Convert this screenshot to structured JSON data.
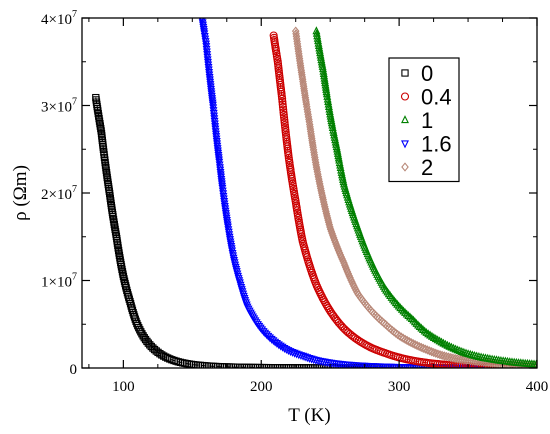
{
  "chart_data": {
    "type": "scatter",
    "xlabel": "T (K)",
    "ylabel": "ρ (Ωm)",
    "xlim": [
      70,
      400
    ],
    "ylim": [
      0,
      40000000
    ],
    "x_ticks": [
      {
        "value": 100,
        "label": "100"
      },
      {
        "value": 200,
        "label": "200"
      },
      {
        "value": 300,
        "label": "300"
      },
      {
        "value": 400,
        "label": "400"
      }
    ],
    "y_ticks": [
      {
        "value": 0,
        "base": "0",
        "exp": ""
      },
      {
        "value": 10000000,
        "base": "1×10",
        "exp": "7"
      },
      {
        "value": 20000000,
        "base": "2×10",
        "exp": "7"
      },
      {
        "value": 30000000,
        "base": "3×10",
        "exp": "7"
      },
      {
        "value": 40000000,
        "base": "4×10",
        "exp": "7"
      }
    ],
    "legend_position": "top-right",
    "series": [
      {
        "name": "0",
        "color": "#000000",
        "marker": "square",
        "x_range": [
          80,
          340
        ],
        "points": [
          [
            80,
            30900000
          ],
          [
            84,
            27000000
          ],
          [
            90,
            20000000
          ],
          [
            95,
            15000000
          ],
          [
            100,
            10500000
          ],
          [
            105,
            7500000
          ],
          [
            110,
            5000000
          ],
          [
            115,
            3500000
          ],
          [
            120,
            2500000
          ],
          [
            130,
            1300000
          ],
          [
            140,
            700000
          ],
          [
            150,
            400000
          ],
          [
            170,
            150000
          ],
          [
            200,
            50000
          ],
          [
            250,
            10000
          ],
          [
            300,
            2000
          ],
          [
            340,
            500
          ]
        ]
      },
      {
        "name": "1.6",
        "color": "#0000ff",
        "marker": "triangle-down",
        "x_range": [
          157,
          360
        ],
        "points": [
          [
            157,
            40000000
          ],
          [
            160,
            37000000
          ],
          [
            165,
            30000000
          ],
          [
            170,
            23000000
          ],
          [
            175,
            17000000
          ],
          [
            180,
            12500000
          ],
          [
            185,
            9500000
          ],
          [
            190,
            7000000
          ],
          [
            200,
            4500000
          ],
          [
            210,
            3000000
          ],
          [
            220,
            2000000
          ],
          [
            230,
            1400000
          ],
          [
            240,
            900000
          ],
          [
            260,
            400000
          ],
          [
            280,
            200000
          ],
          [
            300,
            100000
          ],
          [
            330,
            30000
          ],
          [
            360,
            10000
          ]
        ]
      },
      {
        "name": "0.4",
        "color": "#cc0000",
        "marker": "circle",
        "x_range": [
          209,
          400
        ],
        "points": [
          [
            209,
            38000000
          ],
          [
            212,
            35000000
          ],
          [
            215,
            31000000
          ],
          [
            220,
            24000000
          ],
          [
            225,
            19000000
          ],
          [
            230,
            14500000
          ],
          [
            240,
            9500000
          ],
          [
            250,
            6500000
          ],
          [
            260,
            4500000
          ],
          [
            270,
            3200000
          ],
          [
            280,
            2300000
          ],
          [
            290,
            1700000
          ],
          [
            300,
            1200000
          ],
          [
            320,
            600000
          ],
          [
            340,
            300000
          ],
          [
            360,
            150000
          ],
          [
            380,
            80000
          ],
          [
            400,
            40000
          ]
        ]
      },
      {
        "name": "2",
        "color": "#b88878",
        "marker": "diamond",
        "x_range": [
          225,
          400
        ],
        "points": [
          [
            225,
            38500000
          ],
          [
            230,
            33000000
          ],
          [
            235,
            28000000
          ],
          [
            240,
            23000000
          ],
          [
            250,
            16000000
          ],
          [
            260,
            12000000
          ],
          [
            270,
            8500000
          ],
          [
            280,
            6500000
          ],
          [
            290,
            5000000
          ],
          [
            300,
            3700000
          ],
          [
            310,
            2800000
          ],
          [
            320,
            2100000
          ],
          [
            330,
            1500000
          ],
          [
            340,
            1100000
          ],
          [
            360,
            700000
          ],
          [
            380,
            400000
          ],
          [
            400,
            250000
          ]
        ]
      },
      {
        "name": "1",
        "color": "#008000",
        "marker": "triangle-up",
        "x_range": [
          240,
          400
        ],
        "points": [
          [
            240,
            38500000
          ],
          [
            245,
            34000000
          ],
          [
            250,
            29000000
          ],
          [
            255,
            25000000
          ],
          [
            260,
            21000000
          ],
          [
            270,
            16000000
          ],
          [
            280,
            12000000
          ],
          [
            290,
            9000000
          ],
          [
            300,
            7000000
          ],
          [
            310,
            5500000
          ],
          [
            320,
            4000000
          ],
          [
            330,
            3000000
          ],
          [
            340,
            2200000
          ],
          [
            350,
            1600000
          ],
          [
            360,
            1200000
          ],
          [
            380,
            700000
          ],
          [
            400,
            400000
          ]
        ]
      }
    ],
    "legend_order": [
      "0",
      "0.4",
      "1",
      "1.6",
      "2"
    ]
  }
}
